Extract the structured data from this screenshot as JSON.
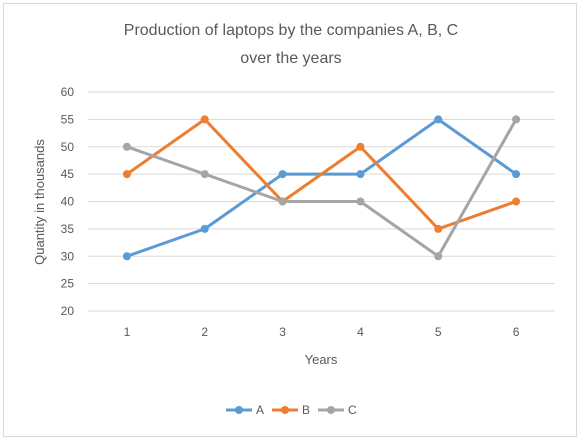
{
  "chart_data": {
    "type": "line",
    "title_line1": "Production of laptops by the companies A, B, C",
    "title_line2": "over the years",
    "xlabel": "Years",
    "ylabel": "Quantity in thousands",
    "categories": [
      "1",
      "2",
      "3",
      "4",
      "5",
      "6"
    ],
    "ylim": [
      20,
      60
    ],
    "yticks": [
      20,
      25,
      30,
      35,
      40,
      45,
      50,
      55,
      60
    ],
    "grid": true,
    "legend_position": "bottom",
    "series": [
      {
        "name": "A",
        "color": "#5b9bd5",
        "values": [
          30,
          35,
          45,
          45,
          55,
          45
        ]
      },
      {
        "name": "B",
        "color": "#ed7d31",
        "values": [
          45,
          55,
          40,
          50,
          35,
          40
        ]
      },
      {
        "name": "C",
        "color": "#a5a5a5",
        "values": [
          50,
          45,
          40,
          40,
          30,
          55
        ]
      }
    ]
  }
}
